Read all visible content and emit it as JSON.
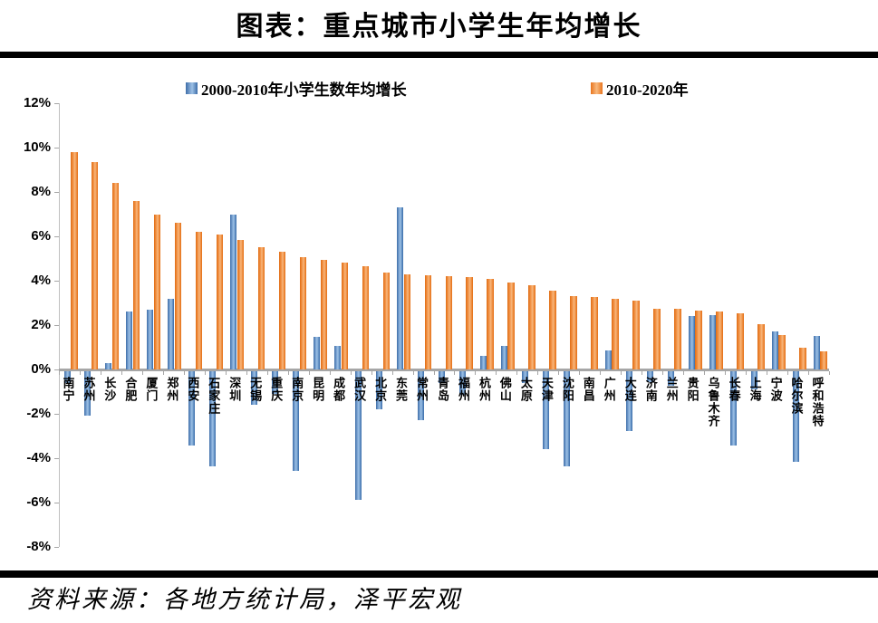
{
  "title": "图表：重点城市小学生年均增长",
  "source": "资料来源：各地方统计局，泽平宏观",
  "legend": {
    "series1_label": "2000-2010年小学生数年均增长",
    "series2_label": "2010-2020年"
  },
  "colors": {
    "series1": "#4F81BD",
    "series2": "#ED7D31",
    "divider": "#000000",
    "axis": "#A6A6A6"
  },
  "chart_data": {
    "type": "bar",
    "title": "图表：重点城市小学生年均增长",
    "categories": [
      "南宁",
      "苏州",
      "长沙",
      "合肥",
      "厦门",
      "郑州",
      "西安",
      "石家庄",
      "深圳",
      "无锡",
      "重庆",
      "南京",
      "昆明",
      "成都",
      "武汉",
      "北京",
      "东莞",
      "常州",
      "青岛",
      "福州",
      "杭州",
      "佛山",
      "太原",
      "天津",
      "沈阳",
      "南昌",
      "广州",
      "大连",
      "济南",
      "兰州",
      "贵阳",
      "乌鲁木齐",
      "长春",
      "上海",
      "宁波",
      "哈尔滨",
      "呼和浩特"
    ],
    "series": [
      {
        "name": "2000-2010年小学生数年均增长",
        "color": "#4F81BD",
        "values": [
          -0.55,
          -2.0,
          0.3,
          2.6,
          2.7,
          3.2,
          -3.35,
          -4.3,
          7.0,
          -1.5,
          -1.0,
          -4.5,
          1.45,
          1.05,
          -5.8,
          -1.7,
          7.3,
          -2.2,
          -0.55,
          -1.05,
          0.6,
          1.05,
          -0.55,
          -3.5,
          -4.3,
          0,
          0.85,
          -2.7,
          -0.5,
          -0.65,
          2.4,
          2.45,
          -3.35,
          -0.8,
          1.7,
          -4.1,
          1.5
        ]
      },
      {
        "name": "2010-2020年",
        "color": "#ED7D31",
        "values": [
          9.8,
          9.35,
          8.4,
          7.6,
          7.0,
          6.6,
          6.2,
          6.1,
          5.85,
          5.5,
          5.3,
          5.05,
          4.95,
          4.8,
          4.65,
          4.35,
          4.3,
          4.25,
          4.2,
          4.15,
          4.1,
          3.9,
          3.8,
          3.55,
          3.3,
          3.25,
          3.2,
          3.1,
          2.75,
          2.75,
          2.65,
          2.6,
          2.55,
          2.05,
          1.55,
          1.0,
          0.8
        ]
      }
    ],
    "xlabel": "",
    "ylabel": "",
    "ylim": [
      -8,
      12
    ],
    "ytick_step": 2,
    "ytick_labels": [
      "12%",
      "10%",
      "8%",
      "6%",
      "4%",
      "2%",
      "0%",
      "-2%",
      "-4%",
      "-6%",
      "-8%"
    ],
    "grid": false,
    "legend_position": "top"
  }
}
